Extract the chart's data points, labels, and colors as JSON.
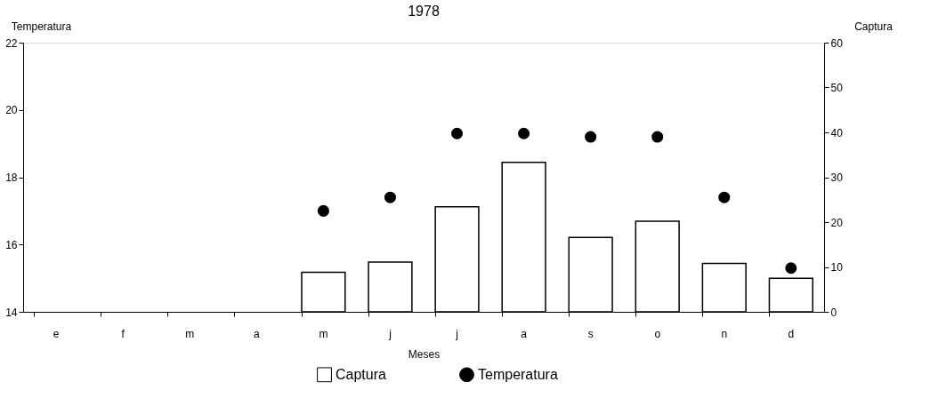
{
  "chart_data": {
    "type": "bar",
    "title": "1978",
    "xlabel": "Meses",
    "ylabel": "Temperatura",
    "y2label": "Captura",
    "categories": [
      "e",
      "f",
      "m",
      "a",
      "m",
      "j",
      "j",
      "a",
      "s",
      "o",
      "n",
      "d"
    ],
    "series": [
      {
        "name": "Captura",
        "axis": "y2",
        "color": "#ffffff",
        "values": [
          null,
          null,
          null,
          null,
          8.8,
          11.1,
          23.4,
          33.3,
          16.6,
          20.2,
          10.8,
          7.5
        ]
      },
      {
        "name": "Temperatura",
        "type": "scatter",
        "color": "#000000",
        "values": [
          null,
          null,
          null,
          null,
          17.0,
          17.4,
          19.3,
          19.3,
          19.2,
          19.2,
          17.4,
          15.3
        ]
      }
    ],
    "ylim": [
      14,
      22
    ],
    "yticks": [
      14,
      16,
      18,
      20,
      22
    ],
    "y2lim": [
      0,
      60
    ],
    "y2ticks": [
      0,
      10,
      20,
      30,
      40,
      50,
      60
    ],
    "marker": "circle",
    "grid": false,
    "legend": "bottom"
  }
}
